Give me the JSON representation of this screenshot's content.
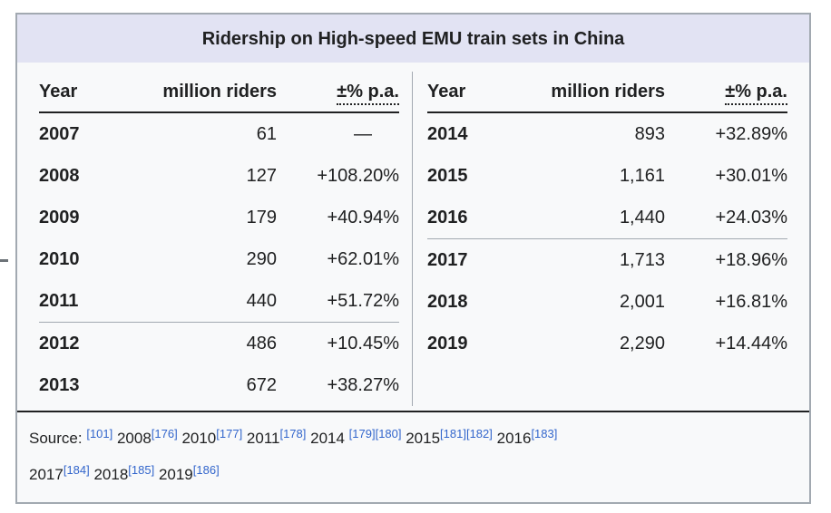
{
  "title": "Ridership on High-speed EMU train sets in China",
  "columns": {
    "year": "Year",
    "riders": "million riders",
    "change": "±% p.a."
  },
  "tables": [
    {
      "id": "left",
      "rows": [
        {
          "year": "2007",
          "riders": "61",
          "change": "—",
          "dash": true
        },
        {
          "year": "2008",
          "riders": "127",
          "change": "+108.20%"
        },
        {
          "year": "2009",
          "riders": "179",
          "change": "+40.94%"
        },
        {
          "year": "2010",
          "riders": "290",
          "change": "+62.01%"
        },
        {
          "year": "2011",
          "riders": "440",
          "change": "+51.72%"
        },
        {
          "year": "2012",
          "riders": "486",
          "change": "+10.45%",
          "separator_above": true
        },
        {
          "year": "2013",
          "riders": "672",
          "change": "+38.27%"
        }
      ]
    },
    {
      "id": "right",
      "rows": [
        {
          "year": "2014",
          "riders": "893",
          "change": "+32.89%"
        },
        {
          "year": "2015",
          "riders": "1,161",
          "change": "+30.01%"
        },
        {
          "year": "2016",
          "riders": "1,440",
          "change": "+24.03%"
        },
        {
          "year": "2017",
          "riders": "1,713",
          "change": "+18.96%",
          "separator_above": true
        },
        {
          "year": "2018",
          "riders": "2,001",
          "change": "+16.81%"
        },
        {
          "year": "2019",
          "riders": "2,290",
          "change": "+14.44%"
        }
      ]
    }
  ],
  "source": {
    "label": "Source:",
    "lines": [
      [
        {
          "t": "ref",
          "v": "[101]"
        },
        {
          "t": "text",
          "v": " 2008"
        },
        {
          "t": "ref",
          "v": "[176]"
        },
        {
          "t": "text",
          "v": " 2010"
        },
        {
          "t": "ref",
          "v": "[177]"
        },
        {
          "t": "text",
          "v": " 2011"
        },
        {
          "t": "ref",
          "v": "[178]"
        },
        {
          "t": "text",
          "v": " 2014 "
        },
        {
          "t": "ref",
          "v": "[179]"
        },
        {
          "t": "ref",
          "v": "[180]"
        },
        {
          "t": "text",
          "v": " 2015"
        },
        {
          "t": "ref",
          "v": "[181]"
        },
        {
          "t": "ref",
          "v": "[182]"
        },
        {
          "t": "text",
          "v": " 2016"
        },
        {
          "t": "ref",
          "v": "[183]"
        }
      ],
      [
        {
          "t": "text",
          "v": "2017"
        },
        {
          "t": "ref",
          "v": "[184]"
        },
        {
          "t": "text",
          "v": " 2018"
        },
        {
          "t": "ref",
          "v": "[185]"
        },
        {
          "t": "text",
          "v": " 2019"
        },
        {
          "t": "ref",
          "v": "[186]"
        }
      ]
    ]
  },
  "colors": {
    "title_bg": "#e2e3f3",
    "body_bg": "#f8f9fa",
    "border": "#a2a9b1",
    "rule": "#202122",
    "text": "#202122",
    "link": "#3366cc"
  }
}
